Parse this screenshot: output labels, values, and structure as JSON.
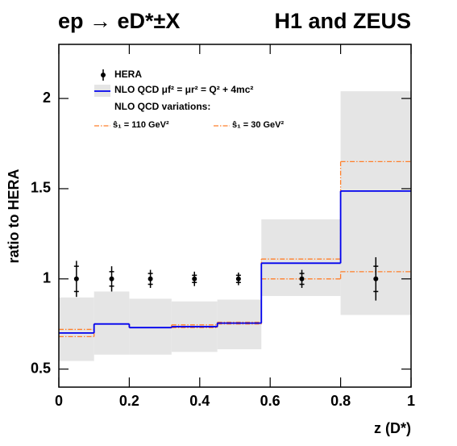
{
  "chart_data": {
    "type": "step",
    "title": "ep → eD*±X",
    "subtitle": "H1 and ZEUS",
    "x_label": "z (D*)",
    "y_label": "ratio to HERA",
    "xlim": [
      0,
      1
    ],
    "ylim": [
      0.4,
      2.3
    ],
    "xticks": [
      0,
      0.2,
      0.4,
      0.6,
      0.8,
      1
    ],
    "yticks": [
      0.5,
      1,
      1.5,
      2
    ],
    "bin_edges": [
      0,
      0.1,
      0.2,
      0.32,
      0.45,
      0.575,
      0.8,
      1
    ],
    "band": {
      "color": "#e5e5e5",
      "upper": [
        0.897,
        0.93,
        0.89,
        0.875,
        0.885,
        1.33,
        2.04
      ],
      "lower": [
        0.545,
        0.58,
        0.58,
        0.595,
        0.61,
        0.905,
        0.8
      ]
    },
    "series": [
      {
        "name": "NLO QCD μf² = μr² = Q² + 4mc²",
        "color": "#0000ee",
        "values": [
          0.7,
          0.75,
          0.73,
          0.735,
          0.755,
          1.087,
          1.487
        ]
      },
      {
        "name": "ŝ₁ = 110 GeV²",
        "color": "#ff7f2a",
        "values": [
          0.72,
          0.75,
          0.73,
          0.745,
          0.76,
          1.11,
          1.65
        ]
      },
      {
        "name": "ŝ₁ = 30 GeV²",
        "color": "#ff7f2a",
        "values": [
          0.68,
          0.75,
          0.73,
          0.73,
          0.75,
          1.0,
          1.04
        ]
      }
    ],
    "variations_label": "NLO QCD variations:",
    "points": {
      "name": "HERA",
      "color": "#000000",
      "x": [
        0.05,
        0.15,
        0.26,
        0.385,
        0.51,
        0.69,
        0.9
      ],
      "values": [
        1,
        1,
        1,
        1,
        1,
        1,
        1
      ],
      "stat_err": [
        0.07,
        0.04,
        0.03,
        0.02,
        0.02,
        0.03,
        0.07
      ],
      "total_err": [
        0.1,
        0.07,
        0.05,
        0.04,
        0.035,
        0.05,
        0.12
      ]
    }
  }
}
